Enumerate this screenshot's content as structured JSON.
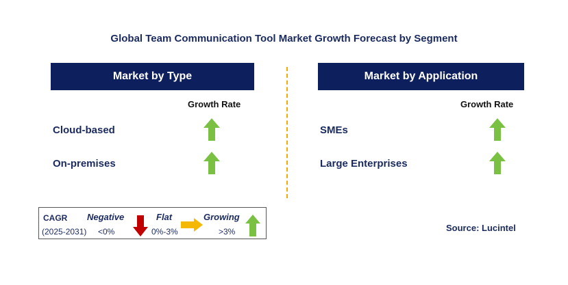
{
  "title": "Global Team Communication Tool Market Growth Forecast by Segment",
  "left_panel": {
    "header": "Market by Type",
    "growth_rate_label": "Growth Rate",
    "rows": [
      {
        "label": "Cloud-based",
        "trend": "growing"
      },
      {
        "label": "On-premises",
        "trend": "growing"
      }
    ]
  },
  "right_panel": {
    "header": "Market by Application",
    "growth_rate_label": "Growth Rate",
    "rows": [
      {
        "label": "SMEs",
        "trend": "growing"
      },
      {
        "label": "Large Enterprises",
        "trend": "growing"
      }
    ]
  },
  "legend": {
    "cagr_label": "CAGR",
    "period": "(2025-2031)",
    "negative_label": "Negative",
    "negative_value": "<0%",
    "flat_label": "Flat",
    "flat_value": "0%-3%",
    "growing_label": "Growing",
    "growing_value": ">3%"
  },
  "source": "Source: Lucintel",
  "colors": {
    "header_bg": "#0d1f5c",
    "growing": "#7ac143",
    "negative": "#c00000",
    "flat": "#f5b800",
    "divider": "#f2a900"
  },
  "icons": [
    "up-arrow-icon",
    "down-arrow-icon",
    "right-arrow-icon"
  ]
}
